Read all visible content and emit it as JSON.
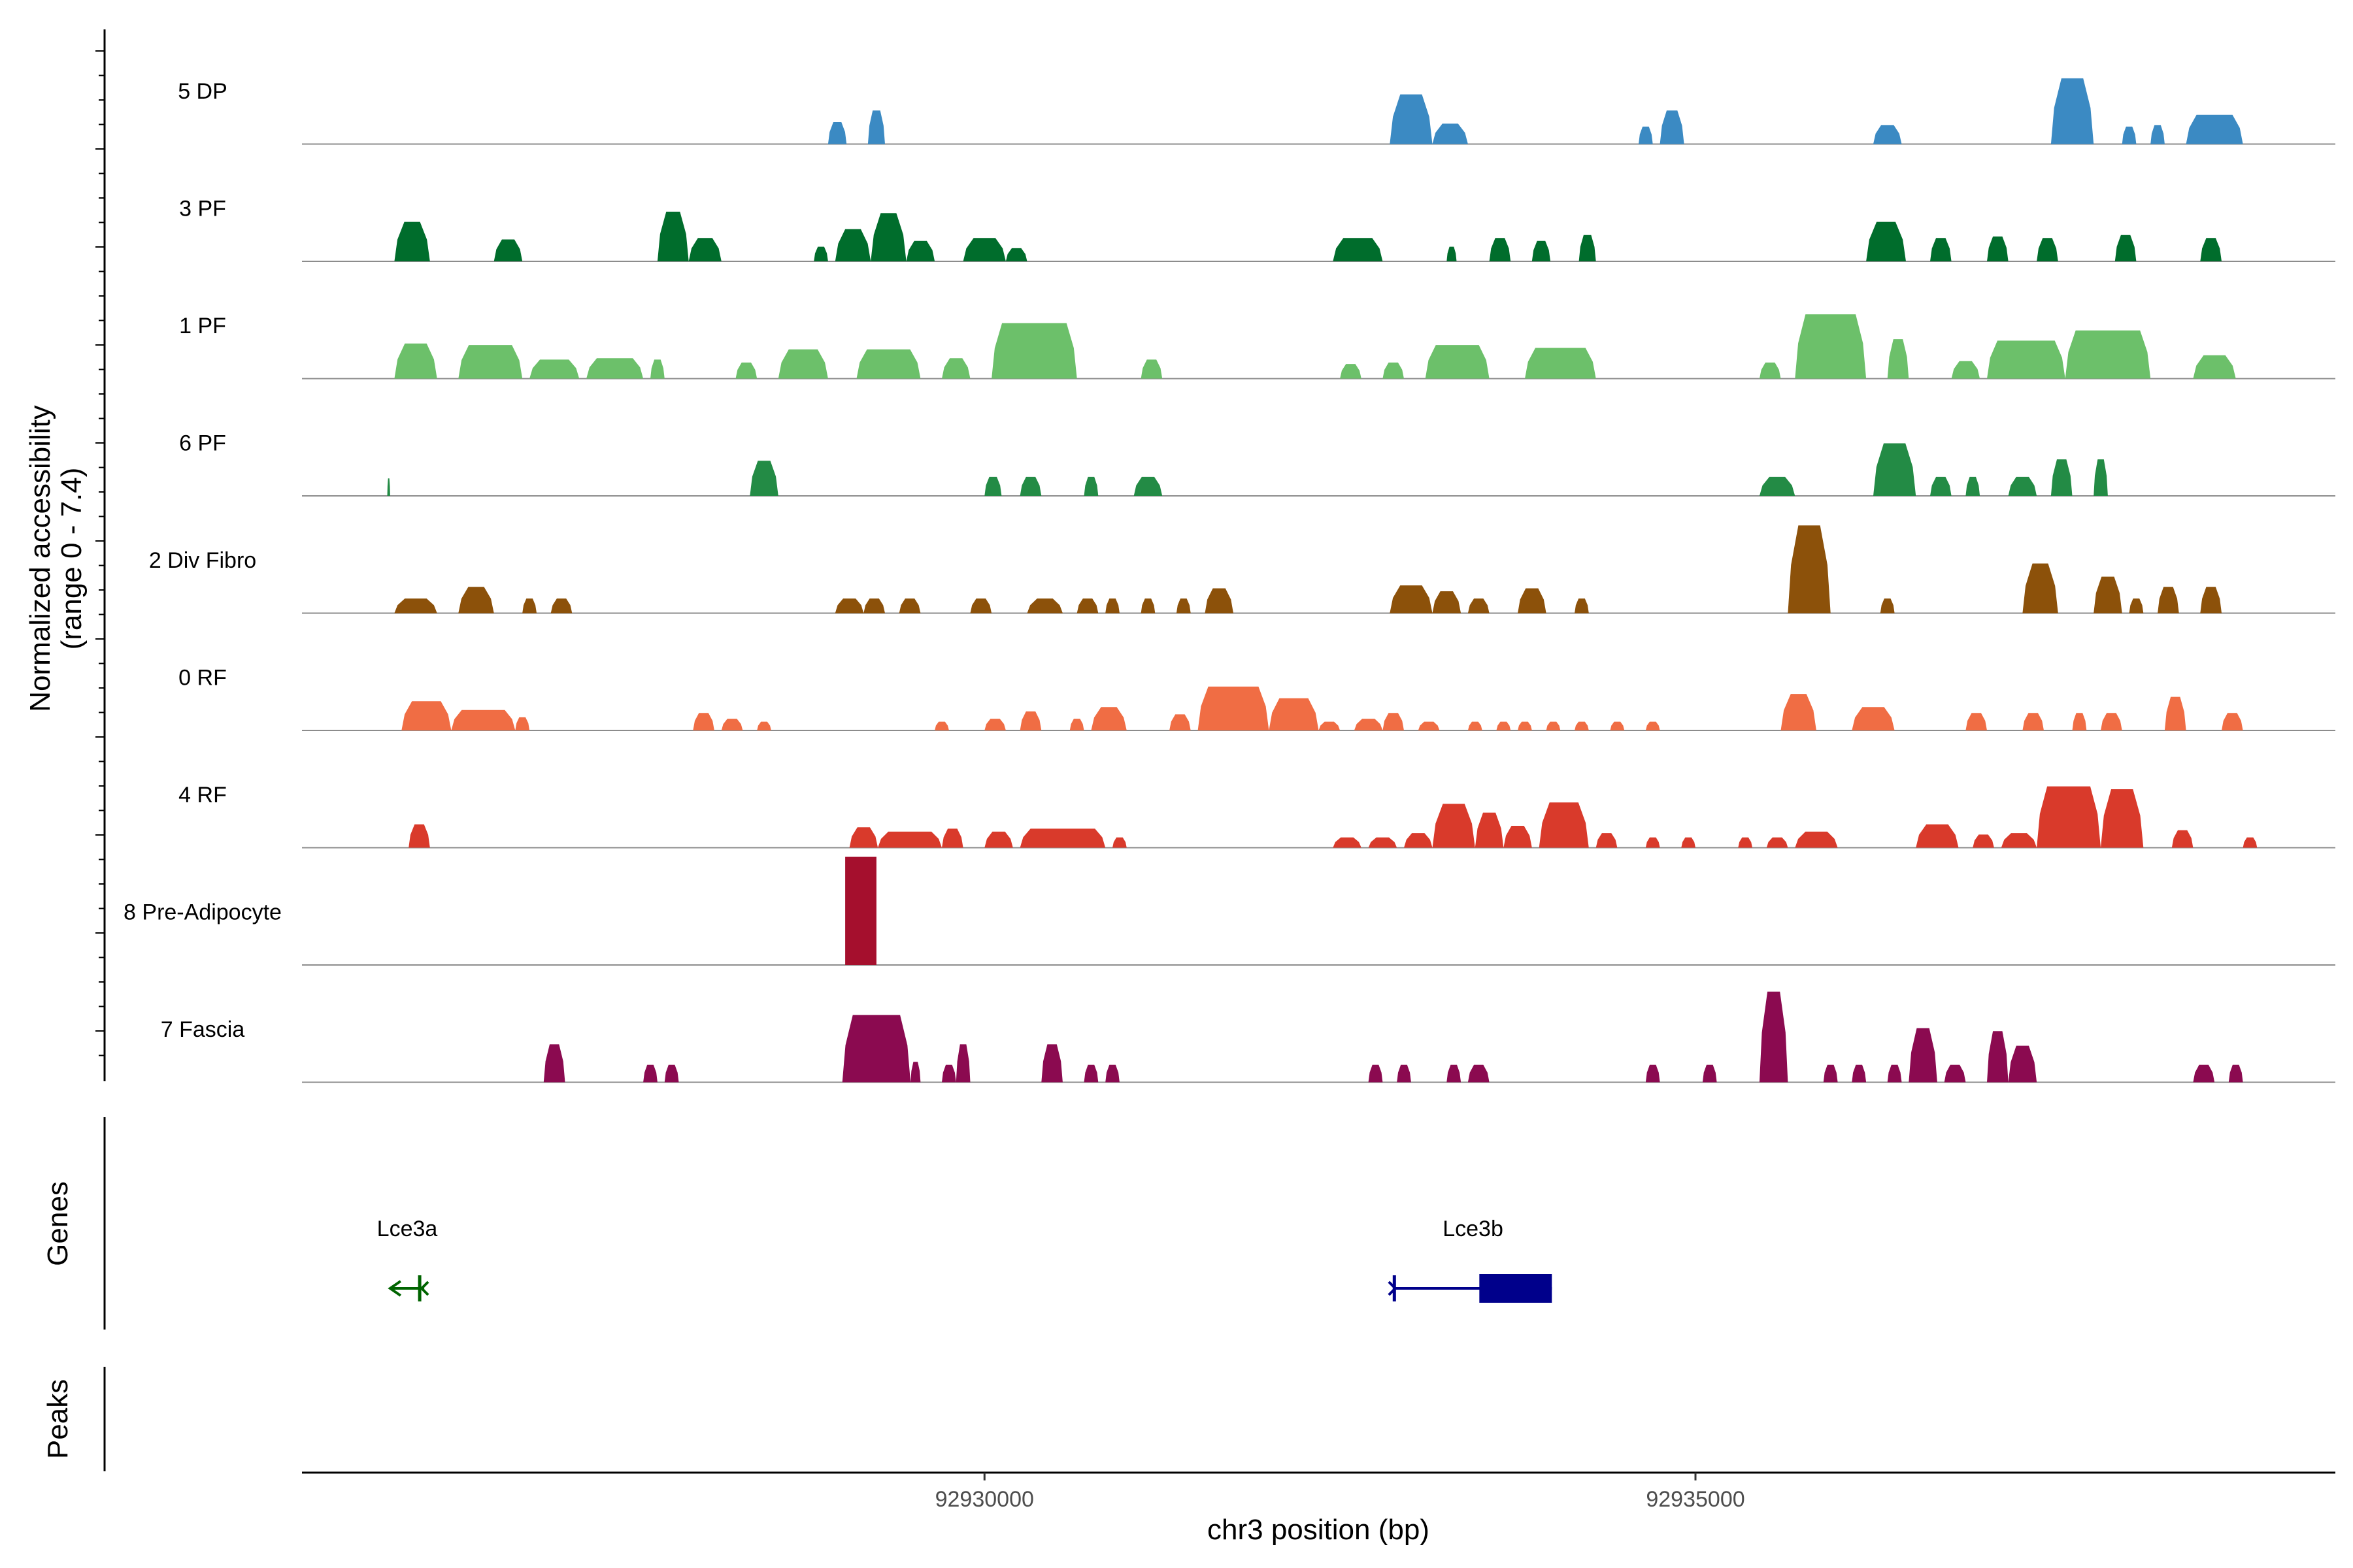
{
  "chart_data": {
    "type": "area",
    "title": "",
    "ylabel_line1": "Normalized accessibility",
    "ylabel_line2": "(range 0 - 7.4)",
    "ylim": [
      0,
      7.4
    ],
    "xlabel": "chr3 position (bp)",
    "xlim": [
      92925200,
      92939500
    ],
    "x_ticks": [
      92930000,
      92935000
    ],
    "x_tick_labels": [
      "92930000",
      "92935000"
    ],
    "series": [
      {
        "name": "5 DP",
        "color": "#3b8ac3",
        "peaks": [
          [
            92929180,
            92929300,
            2.3
          ],
          [
            92928900,
            92929030,
            1.5
          ],
          [
            92932850,
            92933150,
            3.4
          ],
          [
            92933150,
            92933400,
            1.4
          ],
          [
            92934600,
            92934700,
            1.2
          ],
          [
            92934750,
            92934920,
            2.3
          ],
          [
            92936250,
            92936450,
            1.3
          ],
          [
            92937500,
            92937800,
            4.5
          ],
          [
            92938000,
            92938100,
            1.2
          ],
          [
            92938200,
            92938300,
            1.3
          ],
          [
            92938450,
            92938850,
            2.0
          ]
        ]
      },
      {
        "name": "3 PF",
        "color": "#006d2c",
        "peaks": [
          [
            92925850,
            92926100,
            2.7
          ],
          [
            92926550,
            92926750,
            1.5
          ],
          [
            92927700,
            92927920,
            3.4
          ],
          [
            92927920,
            92928150,
            1.6
          ],
          [
            92928800,
            92928900,
            1.0
          ],
          [
            92928950,
            92929200,
            2.2
          ],
          [
            92929200,
            92929450,
            3.3
          ],
          [
            92929450,
            92929650,
            1.4
          ],
          [
            92929850,
            92930150,
            1.6
          ],
          [
            92930150,
            92930300,
            0.9
          ],
          [
            92932450,
            92932800,
            1.6
          ],
          [
            92933250,
            92933320,
            1.0
          ],
          [
            92933550,
            92933700,
            1.6
          ],
          [
            92933850,
            92933980,
            1.4
          ],
          [
            92934180,
            92934300,
            1.8
          ],
          [
            92936200,
            92936480,
            2.7
          ],
          [
            92936650,
            92936800,
            1.6
          ],
          [
            92937050,
            92937200,
            1.7
          ],
          [
            92937400,
            92937550,
            1.6
          ],
          [
            92937950,
            92938100,
            1.8
          ],
          [
            92938550,
            92938700,
            1.6
          ]
        ]
      },
      {
        "name": "1 PF",
        "color": "#6cc06a",
        "peaks": [
          [
            92925850,
            92926150,
            2.4
          ],
          [
            92926300,
            92926750,
            2.3
          ],
          [
            92926800,
            92927150,
            1.3
          ],
          [
            92927200,
            92927600,
            1.4
          ],
          [
            92927650,
            92927750,
            1.3
          ],
          [
            92928250,
            92928400,
            1.1
          ],
          [
            92928550,
            92928900,
            2.0
          ],
          [
            92929100,
            92929550,
            2.0
          ],
          [
            92929700,
            92929900,
            1.4
          ],
          [
            92930050,
            92930650,
            3.8
          ],
          [
            92931100,
            92931250,
            1.3
          ],
          [
            92932500,
            92932650,
            1.0
          ],
          [
            92932800,
            92932950,
            1.1
          ],
          [
            92933100,
            92933550,
            2.3
          ],
          [
            92933800,
            92934300,
            2.1
          ],
          [
            92935450,
            92935600,
            1.1
          ],
          [
            92935700,
            92936200,
            4.4
          ],
          [
            92936350,
            92936500,
            2.7
          ],
          [
            92936800,
            92937000,
            1.2
          ],
          [
            92937050,
            92937600,
            2.6
          ],
          [
            92937600,
            92938200,
            3.3
          ],
          [
            92938500,
            92938800,
            1.6
          ]
        ]
      },
      {
        "name": "6 PF",
        "color": "#238b45",
        "peaks": [
          [
            92925800,
            92925820,
            1.2
          ],
          [
            92928350,
            92928550,
            2.4
          ],
          [
            92930000,
            92930120,
            1.3
          ],
          [
            92930250,
            92930400,
            1.3
          ],
          [
            92930700,
            92930800,
            1.3
          ],
          [
            92931050,
            92931250,
            1.3
          ],
          [
            92935450,
            92935700,
            1.3
          ],
          [
            92936250,
            92936550,
            3.6
          ],
          [
            92936650,
            92936800,
            1.3
          ],
          [
            92936900,
            92937000,
            1.3
          ],
          [
            92937200,
            92937400,
            1.3
          ],
          [
            92937500,
            92937650,
            2.5
          ],
          [
            92937800,
            92937900,
            2.5
          ]
        ]
      },
      {
        "name": "2 Div Fibro",
        "color": "#8c510a",
        "peaks": [
          [
            92925850,
            92926150,
            1.0
          ],
          [
            92926300,
            92926550,
            1.8
          ],
          [
            92926750,
            92926850,
            1.0
          ],
          [
            92926950,
            92927100,
            1.0
          ],
          [
            92928950,
            92929150,
            1.0
          ],
          [
            92929150,
            92929300,
            1.0
          ],
          [
            92929400,
            92929550,
            1.0
          ],
          [
            92929900,
            92930050,
            1.0
          ],
          [
            92930300,
            92930550,
            1.0
          ],
          [
            92930650,
            92930800,
            1.0
          ],
          [
            92930850,
            92930950,
            1.0
          ],
          [
            92931100,
            92931200,
            1.0
          ],
          [
            92931350,
            92931450,
            1.0
          ],
          [
            92931550,
            92931750,
            1.7
          ],
          [
            92932850,
            92933150,
            1.9
          ],
          [
            92933150,
            92933350,
            1.5
          ],
          [
            92933400,
            92933550,
            1.0
          ],
          [
            92933750,
            92933950,
            1.7
          ],
          [
            92934150,
            92934250,
            1.0
          ],
          [
            92935650,
            92935950,
            6.0
          ],
          [
            92936300,
            92936400,
            1.0
          ],
          [
            92937300,
            92937550,
            3.4
          ],
          [
            92937800,
            92938000,
            2.5
          ],
          [
            92938050,
            92938150,
            1.0
          ],
          [
            92938250,
            92938400,
            1.8
          ],
          [
            92938550,
            92938700,
            1.8
          ]
        ]
      },
      {
        "name": "0 RF",
        "color": "#f06d44",
        "peaks": [
          [
            92925900,
            92926250,
            2.0
          ],
          [
            92926250,
            92926700,
            1.4
          ],
          [
            92926700,
            92926800,
            0.9
          ],
          [
            92927950,
            92928100,
            1.2
          ],
          [
            92928150,
            92928300,
            0.8
          ],
          [
            92928400,
            92928500,
            0.6
          ],
          [
            92929650,
            92929750,
            0.6
          ],
          [
            92930000,
            92930150,
            0.8
          ],
          [
            92930250,
            92930400,
            1.3
          ],
          [
            92930600,
            92930700,
            0.8
          ],
          [
            92930750,
            92931000,
            1.6
          ],
          [
            92931300,
            92931450,
            1.1
          ],
          [
            92931500,
            92932000,
            3.0
          ],
          [
            92932000,
            92932350,
            2.2
          ],
          [
            92932350,
            92932500,
            0.6
          ],
          [
            92932600,
            92932800,
            0.8
          ],
          [
            92932800,
            92932950,
            1.2
          ],
          [
            92933050,
            92933200,
            0.6
          ],
          [
            92933400,
            92933500,
            0.6
          ],
          [
            92933600,
            92933700,
            0.6
          ],
          [
            92933750,
            92933850,
            0.6
          ],
          [
            92933950,
            92934050,
            0.6
          ],
          [
            92934150,
            92934250,
            0.6
          ],
          [
            92934400,
            92934500,
            0.6
          ],
          [
            92934650,
            92934750,
            0.6
          ],
          [
            92935600,
            92935850,
            2.5
          ],
          [
            92936100,
            92936400,
            1.6
          ],
          [
            92936900,
            92937050,
            1.2
          ],
          [
            92937300,
            92937450,
            1.2
          ],
          [
            92937650,
            92937750,
            1.2
          ],
          [
            92937850,
            92938000,
            1.2
          ],
          [
            92938300,
            92938450,
            2.3
          ],
          [
            92938700,
            92938850,
            1.2
          ]
        ]
      },
      {
        "name": "4 RF",
        "color": "#d93a2b",
        "peaks": [
          [
            92925950,
            92926100,
            1.6
          ],
          [
            92929050,
            92929250,
            1.4
          ],
          [
            92929250,
            92929700,
            1.1
          ],
          [
            92929700,
            92929850,
            1.3
          ],
          [
            92930000,
            92930200,
            1.1
          ],
          [
            92930250,
            92930850,
            1.3
          ],
          [
            92930900,
            92931000,
            0.7
          ],
          [
            92932450,
            92932650,
            0.7
          ],
          [
            92932700,
            92932900,
            0.7
          ],
          [
            92932950,
            92933150,
            1.0
          ],
          [
            92933150,
            92933450,
            3.0
          ],
          [
            92933450,
            92933650,
            2.4
          ],
          [
            92933650,
            92933850,
            1.5
          ],
          [
            92933900,
            92934250,
            3.1
          ],
          [
            92934300,
            92934450,
            1.0
          ],
          [
            92934650,
            92934750,
            0.7
          ],
          [
            92934900,
            92935000,
            0.7
          ],
          [
            92935300,
            92935400,
            0.7
          ],
          [
            92935500,
            92935650,
            0.7
          ],
          [
            92935700,
            92936000,
            1.1
          ],
          [
            92936550,
            92936850,
            1.6
          ],
          [
            92936950,
            92937100,
            0.9
          ],
          [
            92937150,
            92937400,
            1.0
          ],
          [
            92937400,
            92937850,
            4.2
          ],
          [
            92937850,
            92938150,
            4.0
          ],
          [
            92938350,
            92938500,
            1.2
          ],
          [
            92938850,
            92938950,
            0.7
          ]
        ]
      },
      {
        "name": "8 Pre-Adipocyte",
        "color": "#a50f2d",
        "peaks": [
          [
            92929020,
            92929240,
            7.4
          ]
        ]
      },
      {
        "name": "7 Fascia",
        "color": "#8b0a50",
        "peaks": [
          [
            92926900,
            92927050,
            2.6
          ],
          [
            92927600,
            92927700,
            1.2
          ],
          [
            92927750,
            92927850,
            1.2
          ],
          [
            92929000,
            92929480,
            4.6
          ],
          [
            92929480,
            92929550,
            1.4
          ],
          [
            92929700,
            92929800,
            1.2
          ],
          [
            92929800,
            92929900,
            2.6
          ],
          [
            92930400,
            92930550,
            2.6
          ],
          [
            92930700,
            92930800,
            1.2
          ],
          [
            92930850,
            92930950,
            1.2
          ],
          [
            92932700,
            92932800,
            1.2
          ],
          [
            92932900,
            92933000,
            1.2
          ],
          [
            92933250,
            92933350,
            1.2
          ],
          [
            92933400,
            92933550,
            1.2
          ],
          [
            92934650,
            92934750,
            1.2
          ],
          [
            92935050,
            92935150,
            1.2
          ],
          [
            92935450,
            92935650,
            6.2
          ],
          [
            92935900,
            92936000,
            1.2
          ],
          [
            92936100,
            92936200,
            1.2
          ],
          [
            92936350,
            92936450,
            1.2
          ],
          [
            92936500,
            92936700,
            3.7
          ],
          [
            92936750,
            92936900,
            1.2
          ],
          [
            92937050,
            92937200,
            3.5
          ],
          [
            92937200,
            92937400,
            2.5
          ],
          [
            92938500,
            92938650,
            1.2
          ],
          [
            92938750,
            92938850,
            1.2
          ]
        ]
      }
    ],
    "genes_title": "Genes",
    "peaks_title": "Peaks",
    "genes": [
      {
        "name": "Lce3a",
        "color": "#006400",
        "strand": "-",
        "start": 92925820,
        "end": 92926060
      },
      {
        "name": "Lce3b",
        "color": "#00008b",
        "strand": "+",
        "start": 92932880,
        "end": 92933990,
        "exon_start": 92933480,
        "exon_end": 92933990
      }
    ]
  }
}
